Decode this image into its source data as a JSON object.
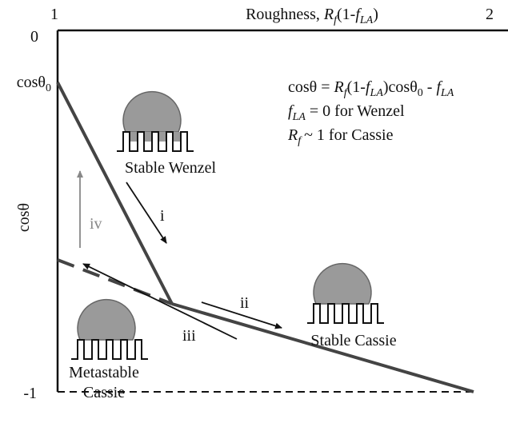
{
  "axis": {
    "x_title": [
      "Roughness, ",
      "R",
      "f",
      "(1-",
      "f",
      "LA",
      ")"
    ],
    "x_ticks": [
      "1",
      "2"
    ],
    "y_ticks": [
      "0",
      "cosθ",
      "0",
      "-1"
    ],
    "y_title": "cosθ"
  },
  "equation": {
    "line1": [
      "cosθ = ",
      "R",
      "f",
      "(1-",
      "f",
      "LA",
      ")cosθ",
      "0",
      " - ",
      "f",
      "LA"
    ],
    "line2": [
      "f",
      "LA",
      " = 0 for Wenzel"
    ],
    "line3": [
      "R",
      "f",
      "~ 1 for Cassie"
    ]
  },
  "states": {
    "wenzel": "Stable Wenzel",
    "cassie": "Stable Cassie",
    "metastable": [
      "Metastable",
      "Cassie"
    ]
  },
  "arrows": {
    "i": "i",
    "ii": "ii",
    "iii": "iii",
    "iv": "iv"
  }
}
